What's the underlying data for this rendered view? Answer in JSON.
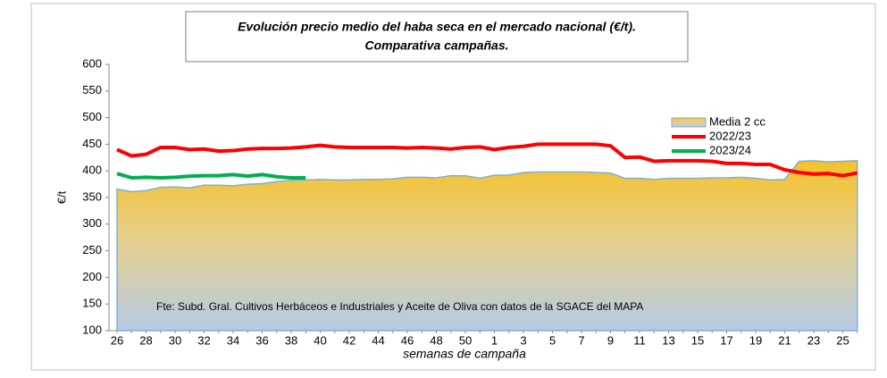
{
  "chart_data": {
    "type": "area-line",
    "title_lines": [
      "Evolución precio medio del haba seca en el mercado nacional (€/t).",
      "Comparativa campañas."
    ],
    "y_label": "€/t",
    "x_label": "semanas de campaña",
    "annotation": "Fte: Subd. Gral. Cultivos Herbáceos e Industriales y Aceite de Oliva con datos de la SGACE del MAPA",
    "categories": [
      "26",
      null,
      "28",
      null,
      "30",
      null,
      "32",
      null,
      "34",
      null,
      "36",
      null,
      "38",
      null,
      "40",
      null,
      "42",
      null,
      "44",
      null,
      "46",
      null,
      "48",
      null,
      "50",
      null,
      "1",
      null,
      "3",
      null,
      "5",
      null,
      "7",
      null,
      "9",
      null,
      "11",
      null,
      "13",
      null,
      "15",
      null,
      "17",
      null,
      "19",
      null,
      "21",
      null,
      "23",
      null,
      "25",
      null
    ],
    "series": [
      {
        "name": "Media 2 cc",
        "kind": "area",
        "color": "#7eb0d5",
        "values": [
          366,
          361,
          363,
          369,
          370,
          368,
          373,
          373,
          372,
          375,
          376,
          380,
          382,
          383,
          384,
          383,
          383,
          384,
          384,
          385,
          388,
          388,
          387,
          391,
          391,
          386,
          392,
          392,
          397,
          398,
          398,
          398,
          398,
          397,
          396,
          386,
          386,
          384,
          386,
          386,
          386,
          387,
          387,
          388,
          386,
          383,
          384,
          418,
          419,
          417,
          418,
          419
        ]
      },
      {
        "name": "2022/23",
        "kind": "line",
        "color": "#ff0000",
        "values": [
          440,
          428,
          431,
          444,
          444,
          440,
          441,
          437,
          438,
          441,
          442,
          442,
          443,
          445,
          448,
          445,
          444,
          444,
          444,
          444,
          443,
          444,
          443,
          441,
          444,
          445,
          440,
          444,
          446,
          450,
          450,
          450,
          450,
          450,
          447,
          425,
          426,
          418,
          419,
          419,
          419,
          418,
          414,
          414,
          412,
          412,
          402,
          397,
          394,
          395,
          391,
          396
        ]
      },
      {
        "name": "2023/24",
        "kind": "line",
        "color": "#00b050",
        "values": [
          395,
          387,
          388,
          387,
          388,
          390,
          391,
          391,
          393,
          390,
          393,
          389,
          387,
          387,
          null,
          null,
          null,
          null,
          null,
          null,
          null,
          null,
          null,
          null,
          null,
          null,
          null,
          null,
          null,
          null,
          null,
          null,
          null,
          null,
          null,
          null,
          null,
          null,
          null,
          null,
          null,
          null,
          null,
          null,
          null,
          null,
          null,
          null,
          null,
          null,
          null,
          null
        ]
      }
    ],
    "ylim": [
      100,
      600
    ],
    "yticks": [
      100,
      150,
      200,
      250,
      300,
      350,
      400,
      450,
      500,
      550,
      600
    ],
    "grid": false,
    "legend": "top-right"
  }
}
